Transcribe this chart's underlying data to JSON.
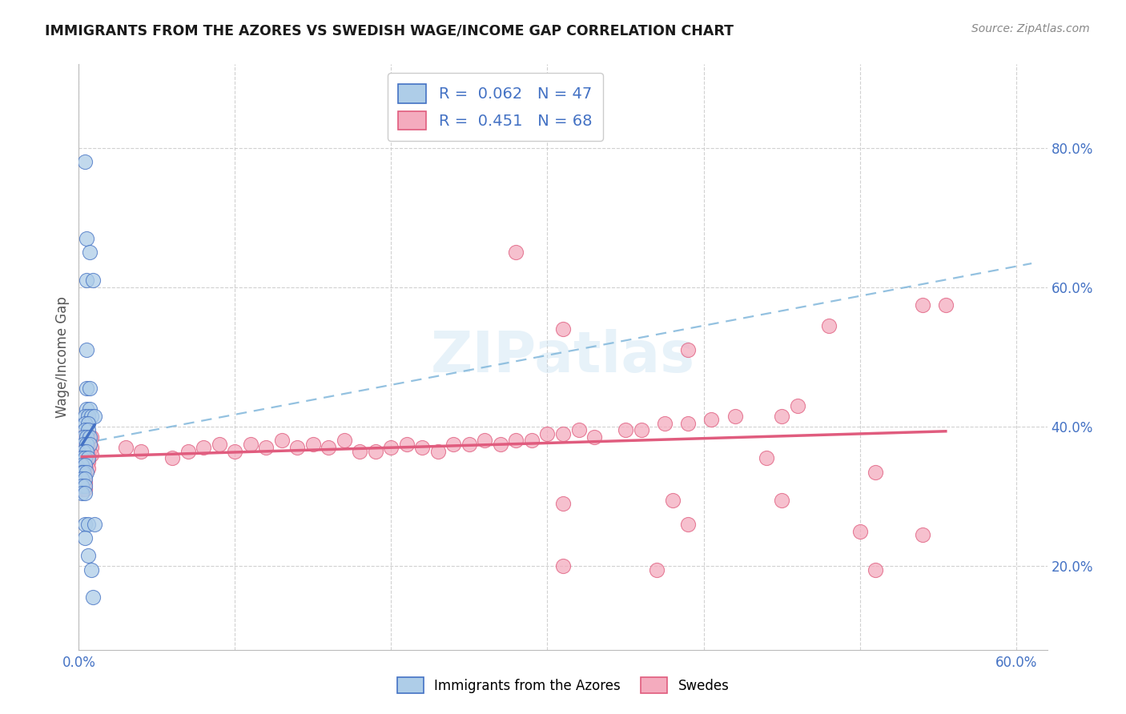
{
  "title": "IMMIGRANTS FROM THE AZORES VS SWEDISH WAGE/INCOME GAP CORRELATION CHART",
  "source": "Source: ZipAtlas.com",
  "ylabel": "Wage/Income Gap",
  "xlim": [
    0.0,
    0.62
  ],
  "ylim": [
    0.08,
    0.92
  ],
  "xtick_vals": [
    0.0,
    0.1,
    0.2,
    0.3,
    0.4,
    0.5,
    0.6
  ],
  "xtick_labels": [
    "0.0%",
    "",
    "",
    "",
    "",
    "",
    "60.0%"
  ],
  "yticks_right": [
    0.2,
    0.4,
    0.6,
    0.8
  ],
  "yticklabels_right": [
    "20.0%",
    "40.0%",
    "60.0%",
    "80.0%"
  ],
  "color_blue": "#aecde8",
  "color_pink": "#f4abbe",
  "line_blue": "#4472c4",
  "line_pink": "#e05c7e",
  "watermark": "ZIPatlas",
  "blue_scatter": [
    [
      0.004,
      0.78
    ],
    [
      0.005,
      0.67
    ],
    [
      0.007,
      0.65
    ],
    [
      0.005,
      0.61
    ],
    [
      0.009,
      0.61
    ],
    [
      0.005,
      0.51
    ],
    [
      0.005,
      0.455
    ],
    [
      0.007,
      0.455
    ],
    [
      0.005,
      0.425
    ],
    [
      0.007,
      0.425
    ],
    [
      0.004,
      0.415
    ],
    [
      0.006,
      0.415
    ],
    [
      0.008,
      0.415
    ],
    [
      0.01,
      0.415
    ],
    [
      0.004,
      0.405
    ],
    [
      0.006,
      0.405
    ],
    [
      0.004,
      0.395
    ],
    [
      0.006,
      0.395
    ],
    [
      0.003,
      0.385
    ],
    [
      0.005,
      0.385
    ],
    [
      0.007,
      0.385
    ],
    [
      0.003,
      0.375
    ],
    [
      0.005,
      0.375
    ],
    [
      0.007,
      0.375
    ],
    [
      0.003,
      0.365
    ],
    [
      0.005,
      0.365
    ],
    [
      0.002,
      0.355
    ],
    [
      0.004,
      0.355
    ],
    [
      0.006,
      0.355
    ],
    [
      0.002,
      0.345
    ],
    [
      0.004,
      0.345
    ],
    [
      0.002,
      0.335
    ],
    [
      0.003,
      0.335
    ],
    [
      0.005,
      0.335
    ],
    [
      0.002,
      0.325
    ],
    [
      0.004,
      0.325
    ],
    [
      0.002,
      0.315
    ],
    [
      0.004,
      0.315
    ],
    [
      0.002,
      0.305
    ],
    [
      0.004,
      0.305
    ],
    [
      0.004,
      0.26
    ],
    [
      0.006,
      0.26
    ],
    [
      0.01,
      0.26
    ],
    [
      0.004,
      0.24
    ],
    [
      0.006,
      0.215
    ],
    [
      0.008,
      0.195
    ],
    [
      0.009,
      0.155
    ]
  ],
  "pink_scatter": [
    [
      0.002,
      0.385
    ],
    [
      0.004,
      0.385
    ],
    [
      0.006,
      0.385
    ],
    [
      0.008,
      0.385
    ],
    [
      0.002,
      0.37
    ],
    [
      0.004,
      0.37
    ],
    [
      0.006,
      0.37
    ],
    [
      0.008,
      0.37
    ],
    [
      0.002,
      0.36
    ],
    [
      0.004,
      0.36
    ],
    [
      0.006,
      0.36
    ],
    [
      0.008,
      0.36
    ],
    [
      0.002,
      0.35
    ],
    [
      0.004,
      0.35
    ],
    [
      0.006,
      0.35
    ],
    [
      0.002,
      0.34
    ],
    [
      0.004,
      0.34
    ],
    [
      0.006,
      0.34
    ],
    [
      0.002,
      0.33
    ],
    [
      0.004,
      0.33
    ],
    [
      0.002,
      0.32
    ],
    [
      0.004,
      0.32
    ],
    [
      0.002,
      0.31
    ],
    [
      0.004,
      0.31
    ],
    [
      0.03,
      0.37
    ],
    [
      0.04,
      0.365
    ],
    [
      0.06,
      0.355
    ],
    [
      0.07,
      0.365
    ],
    [
      0.08,
      0.37
    ],
    [
      0.09,
      0.375
    ],
    [
      0.1,
      0.365
    ],
    [
      0.11,
      0.375
    ],
    [
      0.12,
      0.37
    ],
    [
      0.13,
      0.38
    ],
    [
      0.14,
      0.37
    ],
    [
      0.15,
      0.375
    ],
    [
      0.16,
      0.37
    ],
    [
      0.17,
      0.38
    ],
    [
      0.18,
      0.365
    ],
    [
      0.19,
      0.365
    ],
    [
      0.2,
      0.37
    ],
    [
      0.21,
      0.375
    ],
    [
      0.22,
      0.37
    ],
    [
      0.23,
      0.365
    ],
    [
      0.24,
      0.375
    ],
    [
      0.25,
      0.375
    ],
    [
      0.26,
      0.38
    ],
    [
      0.27,
      0.375
    ],
    [
      0.28,
      0.38
    ],
    [
      0.29,
      0.38
    ],
    [
      0.3,
      0.39
    ],
    [
      0.31,
      0.39
    ],
    [
      0.32,
      0.395
    ],
    [
      0.33,
      0.385
    ],
    [
      0.35,
      0.395
    ],
    [
      0.36,
      0.395
    ],
    [
      0.375,
      0.405
    ],
    [
      0.39,
      0.405
    ],
    [
      0.405,
      0.41
    ],
    [
      0.42,
      0.415
    ],
    [
      0.44,
      0.355
    ],
    [
      0.45,
      0.415
    ],
    [
      0.46,
      0.43
    ],
    [
      0.28,
      0.65
    ],
    [
      0.39,
      0.51
    ],
    [
      0.31,
      0.54
    ],
    [
      0.48,
      0.545
    ],
    [
      0.38,
      0.295
    ],
    [
      0.45,
      0.295
    ],
    [
      0.5,
      0.25
    ],
    [
      0.39,
      0.26
    ],
    [
      0.31,
      0.29
    ],
    [
      0.51,
      0.335
    ],
    [
      0.54,
      0.575
    ],
    [
      0.555,
      0.575
    ],
    [
      0.51,
      0.195
    ],
    [
      0.37,
      0.195
    ],
    [
      0.31,
      0.2
    ],
    [
      0.54,
      0.245
    ]
  ]
}
